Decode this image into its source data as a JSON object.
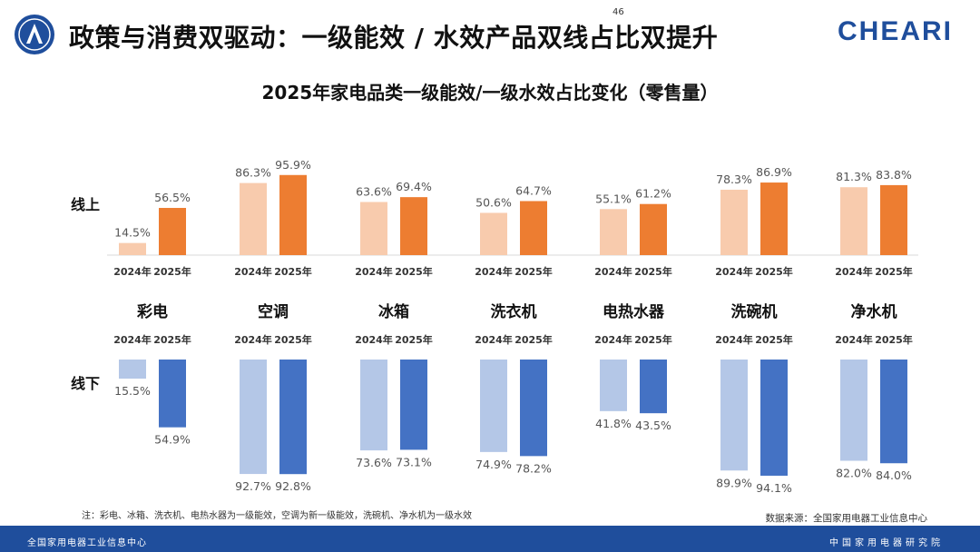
{
  "header": {
    "title": "政策与消费双驱动：一级能效 / 水效产品双线占比双提升",
    "brand": "CHEARI"
  },
  "chart_data": {
    "type": "bar",
    "title": "2025年家电品类一级能效/一级水效占比变化（零售量）",
    "row_labels": {
      "online": "线上",
      "offline": "线下"
    },
    "years": [
      "2024年",
      "2025年"
    ],
    "categories": [
      "彩电",
      "空调",
      "冰箱",
      "洗衣机",
      "电热水器",
      "洗碗机",
      "净水机"
    ],
    "online": {
      "2024": [
        14.5,
        86.3,
        63.6,
        50.6,
        55.1,
        78.3,
        81.3
      ],
      "2025": [
        56.5,
        95.9,
        69.4,
        64.7,
        61.2,
        86.9,
        83.8
      ]
    },
    "offline": {
      "2024": [
        15.5,
        92.7,
        73.6,
        74.9,
        41.8,
        89.9,
        82.0
      ],
      "2025": [
        54.9,
        92.8,
        73.1,
        78.2,
        43.5,
        94.1,
        84.0
      ]
    },
    "unit": "%",
    "ylim": [
      0,
      100
    ],
    "colors": {
      "online_2024": "#f8cbad",
      "online_2025": "#ed7d31",
      "offline_2024": "#b4c7e7",
      "offline_2025": "#4472c4"
    }
  },
  "footnote": "注：彩电、冰箱、洗衣机、电热水器为一级能效，空调为新一级能效，洗碗机、净水机为一级水效",
  "source": "数据来源：全国家用电器工业信息中心",
  "footer": {
    "left": "全国家用电器工业信息中心",
    "page": "46",
    "right": "中国家用电器研究院"
  }
}
